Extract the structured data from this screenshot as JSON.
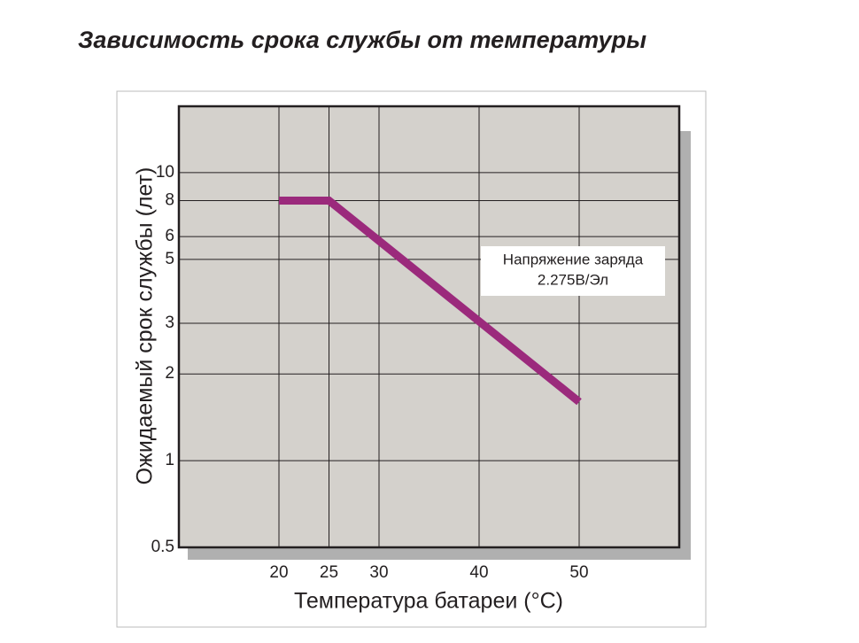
{
  "chart_data": {
    "type": "line",
    "title": "Зависимость срока службы от температуры",
    "x_label": "Температура батареи (°C)",
    "y_label": "Ожидаемый срок службы (лет)",
    "annotation": [
      "Напряжение заряда",
      "2.275В/Эл"
    ],
    "x": [
      20,
      25,
      50
    ],
    "series": [
      {
        "name": "2.275В/Эл",
        "color": "#9b2a7c",
        "values": [
          8,
          8,
          1.6
        ]
      }
    ],
    "xlim": [
      10,
      60
    ],
    "xticks": [
      20,
      25,
      30,
      40,
      50
    ],
    "ylim": [
      0.5,
      17
    ],
    "yticks": [
      0.5,
      1,
      2,
      3,
      5,
      6,
      8,
      10
    ],
    "y_scale": "log",
    "grid": true
  }
}
